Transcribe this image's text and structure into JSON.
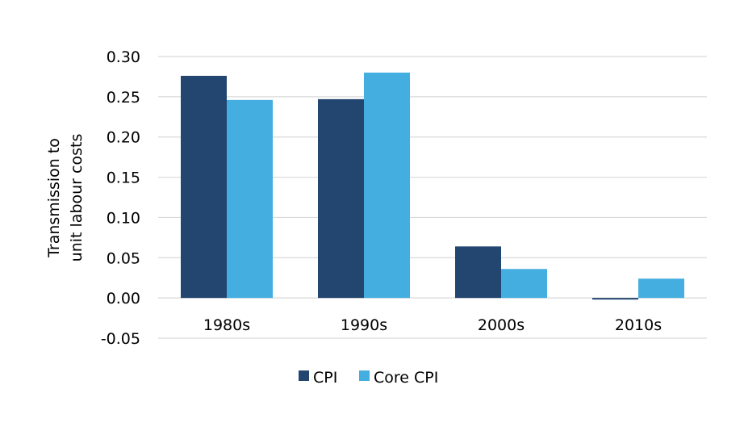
{
  "colors": {
    "cpi": "#234670",
    "core_cpi": "#45aee0",
    "gridline": "#d9d9d9",
    "text": "#000000"
  },
  "chart_data": {
    "type": "bar",
    "title": "",
    "xlabel": "",
    "ylabel_lines": [
      "Transmission to",
      "unit labour costs"
    ],
    "categories": [
      "1980s",
      "1990s",
      "2000s",
      "2010s"
    ],
    "series": [
      {
        "name": "CPI",
        "values": [
          0.276,
          0.247,
          0.064,
          -0.002
        ]
      },
      {
        "name": "Core CPI",
        "values": [
          0.246,
          0.28,
          0.036,
          0.024
        ]
      }
    ],
    "ylim": [
      -0.05,
      0.3
    ],
    "yticks": [
      "-0.05",
      "0.00",
      "0.05",
      "0.10",
      "0.15",
      "0.20",
      "0.25",
      "0.30"
    ],
    "grid": true,
    "legend_position": "bottom"
  }
}
